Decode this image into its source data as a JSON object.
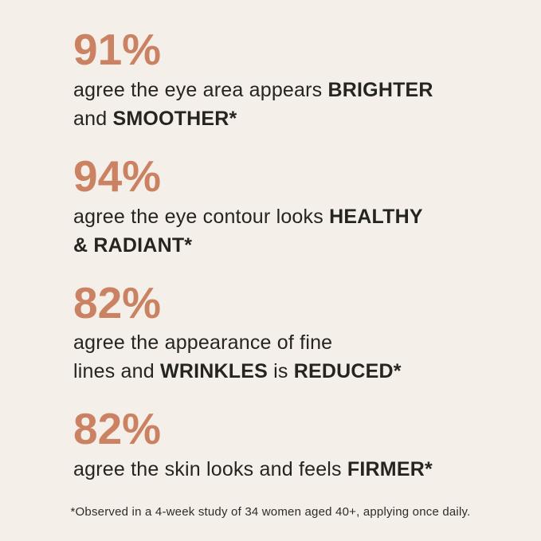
{
  "colors": {
    "background": "#f4f0e9",
    "accent": "#ca8262",
    "text": "#262420"
  },
  "stats": [
    {
      "pct": "91%",
      "lines": [
        [
          {
            "t": "agree the eye area appears ",
            "b": false
          },
          {
            "t": "BRIGHTER",
            "b": true
          }
        ],
        [
          {
            "t": "and ",
            "b": false
          },
          {
            "t": "SMOOTHER*",
            "b": true
          }
        ]
      ]
    },
    {
      "pct": "94%",
      "lines": [
        [
          {
            "t": "agree the eye contour looks ",
            "b": false
          },
          {
            "t": "HEALTHY",
            "b": true
          }
        ],
        [
          {
            "t": "& RADIANT*",
            "b": true
          }
        ]
      ]
    },
    {
      "pct": "82%",
      "lines": [
        [
          {
            "t": "agree the appearance of fine",
            "b": false
          }
        ],
        [
          {
            "t": "lines and ",
            "b": false
          },
          {
            "t": "WRINKLES",
            "b": true
          },
          {
            "t": " is ",
            "b": false
          },
          {
            "t": "REDUCED*",
            "b": true
          }
        ]
      ]
    },
    {
      "pct": "82%",
      "lines": [
        [
          {
            "t": "agree the skin looks and feels ",
            "b": false
          },
          {
            "t": "FIRMER*",
            "b": true
          }
        ]
      ]
    }
  ],
  "footnote": "*Observed in a 4-week study of 34 women aged 40+, applying once daily."
}
